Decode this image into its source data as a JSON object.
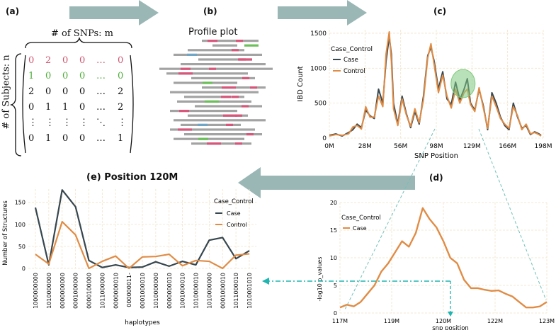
{
  "panels": {
    "a": "(a)",
    "b": "(b)",
    "c": "(c)",
    "d": "(d)",
    "e": "(e) Position 120M"
  },
  "matrix": {
    "snps_label": "# of SNPs: m",
    "subjects_label": "# of Subjects: n",
    "rows": [
      {
        "cells": [
          "0",
          "2",
          "0",
          "0",
          "…",
          "0"
        ],
        "color": "#d0566f"
      },
      {
        "cells": [
          "1",
          "0",
          "0",
          "0",
          "…",
          "0"
        ],
        "color": "#4fae3a"
      },
      {
        "cells": [
          "2",
          "0",
          "0",
          "0",
          "…",
          "2"
        ],
        "color": "#111111"
      },
      {
        "cells": [
          "0",
          "1",
          "1",
          "0",
          "…",
          "2"
        ],
        "color": "#111111"
      },
      {
        "cells": [
          "⋮",
          "⋮",
          "⋮",
          "⋮",
          "⋱",
          "⋮"
        ],
        "color": "#111111"
      },
      {
        "cells": [
          "0",
          "1",
          "0",
          "0",
          "…",
          "1"
        ],
        "color": "#111111"
      }
    ]
  },
  "profile": {
    "title": "Profile plot"
  },
  "chart_data": [
    {
      "id": "c",
      "type": "line",
      "title": "",
      "xlabel": "SNP Position",
      "ylabel": "IBD Count",
      "legend_title": "Case_Control",
      "x_ticks": [
        "0M",
        "28M",
        "56M",
        "98M",
        "129M",
        "166M",
        "198M"
      ],
      "y_ticks": [
        "0",
        "500",
        "1000",
        "1500"
      ],
      "xlim": [
        0,
        200
      ],
      "ylim": [
        0,
        1550
      ],
      "series": [
        {
          "name": "Case",
          "color": "#37474f",
          "x": [
            0,
            6,
            12,
            18,
            22,
            26,
            30,
            34,
            38,
            42,
            46,
            50,
            53,
            56,
            58,
            60,
            64,
            68,
            72,
            76,
            80,
            84,
            88,
            92,
            95,
            98,
            102,
            106,
            110,
            114,
            118,
            122,
            126,
            129,
            132,
            136,
            140,
            144,
            148,
            152,
            156,
            160,
            164,
            168,
            172,
            176,
            180,
            184,
            188,
            192,
            196,
            198
          ],
          "y": [
            40,
            60,
            30,
            80,
            120,
            200,
            150,
            400,
            320,
            280,
            700,
            500,
            1100,
            1450,
            1200,
            500,
            200,
            600,
            350,
            150,
            380,
            200,
            600,
            1180,
            1300,
            1100,
            700,
            950,
            560,
            480,
            800,
            550,
            700,
            850,
            500,
            400,
            700,
            460,
            120,
            650,
            500,
            300,
            180,
            120,
            500,
            300,
            140,
            180,
            50,
            90,
            60,
            40
          ]
        },
        {
          "name": "Control",
          "color": "#e08c45",
          "x": [
            0,
            6,
            12,
            18,
            22,
            26,
            30,
            34,
            38,
            42,
            46,
            50,
            53,
            56,
            58,
            60,
            64,
            68,
            72,
            76,
            80,
            84,
            88,
            92,
            95,
            98,
            102,
            106,
            110,
            114,
            118,
            122,
            126,
            129,
            132,
            136,
            140,
            144,
            148,
            152,
            156,
            160,
            164,
            168,
            172,
            176,
            180,
            184,
            188,
            192,
            196,
            198
          ],
          "y": [
            30,
            50,
            40,
            60,
            160,
            180,
            130,
            450,
            300,
            300,
            600,
            450,
            1200,
            1520,
            1100,
            420,
            180,
            560,
            330,
            170,
            420,
            220,
            550,
            1150,
            1350,
            1050,
            650,
            900,
            600,
            430,
            700,
            500,
            650,
            700,
            480,
            380,
            720,
            430,
            140,
            600,
            450,
            280,
            200,
            140,
            450,
            320,
            120,
            200,
            60,
            80,
            50,
            30
          ]
        }
      ]
    },
    {
      "id": "d",
      "type": "line",
      "xlabel": "snp position",
      "ylabel": "-log10 p_values",
      "legend_title": "Case_Control",
      "x_ticks": [
        "117M",
        "119M",
        "120M",
        "122M",
        "123M"
      ],
      "y_ticks": [
        "0",
        "5",
        "10",
        "15",
        "20"
      ],
      "xlim": [
        117,
        123
      ],
      "ylim": [
        0,
        20
      ],
      "series": [
        {
          "name": "Case",
          "color": "#e08c45",
          "x": [
            117.0,
            117.2,
            117.4,
            117.6,
            117.8,
            118.0,
            118.2,
            118.4,
            118.6,
            118.8,
            119.0,
            119.2,
            119.4,
            119.6,
            119.8,
            120.0,
            120.2,
            120.4,
            120.6,
            120.8,
            121.0,
            121.2,
            121.4,
            121.6,
            121.8,
            122.0,
            122.2,
            122.4,
            122.6,
            122.8,
            123.0
          ],
          "y": [
            1.0,
            1.5,
            1.2,
            2.0,
            3.5,
            5.0,
            7.5,
            9.0,
            11.0,
            13.0,
            12.0,
            14.5,
            19.0,
            17.0,
            15.5,
            13.0,
            10.0,
            9.0,
            6.0,
            4.5,
            4.5,
            4.2,
            4.0,
            4.1,
            3.5,
            3.0,
            2.0,
            1.0,
            1.0,
            1.2,
            2.0
          ]
        }
      ]
    },
    {
      "id": "e",
      "type": "line",
      "xlabel": "haplotypes",
      "ylabel": "Number of Structures",
      "legend_title": "Case_Control",
      "categories": [
        "1000000000",
        "1010000000",
        "0000000000",
        "0001000000",
        "0000100000",
        "1011000000",
        "0000000010",
        "000000011-",
        "0001000010",
        "1010000000",
        "0000000010",
        "1001000010",
        "1010000010",
        "1010000000",
        "0001000010",
        "1011000010",
        "1010001010"
      ],
      "y_ticks": [
        "0",
        "50",
        "100",
        "150"
      ],
      "ylim": [
        0,
        180
      ],
      "series": [
        {
          "name": "Case",
          "color": "#37474f",
          "values": [
            138,
            8,
            178,
            140,
            18,
            2,
            8,
            2,
            3,
            15,
            5,
            16,
            8,
            64,
            70,
            22,
            40
          ]
        },
        {
          "name": "Control",
          "color": "#e08c45",
          "values": [
            32,
            10,
            106,
            76,
            0,
            16,
            28,
            0,
            26,
            27,
            32,
            6,
            18,
            16,
            0,
            30,
            33
          ]
        }
      ]
    }
  ]
}
